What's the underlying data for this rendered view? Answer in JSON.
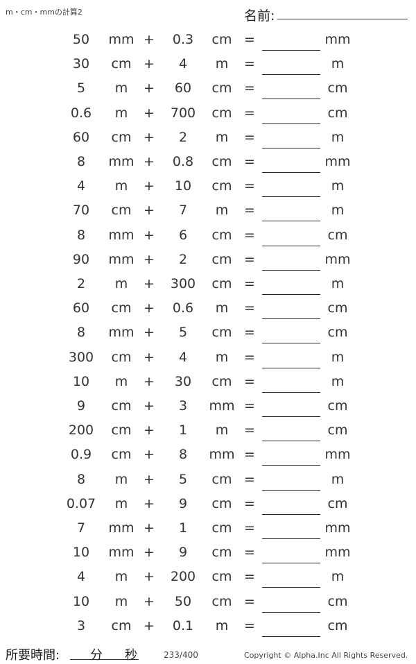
{
  "header": {
    "title": "m・cm・mmの計算2",
    "name_label": "名前:"
  },
  "problems": [
    {
      "a": "50",
      "ua": "mm",
      "op": "+",
      "b": "0.3",
      "ub": "cm",
      "eq": "=",
      "ans_unit": "mm"
    },
    {
      "a": "30",
      "ua": "cm",
      "op": "+",
      "b": "4",
      "ub": "m",
      "eq": "=",
      "ans_unit": "m"
    },
    {
      "a": "5",
      "ua": "m",
      "op": "+",
      "b": "60",
      "ub": "cm",
      "eq": "=",
      "ans_unit": "cm"
    },
    {
      "a": "0.6",
      "ua": "m",
      "op": "+",
      "b": "700",
      "ub": "cm",
      "eq": "=",
      "ans_unit": "cm"
    },
    {
      "a": "60",
      "ua": "cm",
      "op": "+",
      "b": "2",
      "ub": "m",
      "eq": "=",
      "ans_unit": "m"
    },
    {
      "a": "8",
      "ua": "mm",
      "op": "+",
      "b": "0.8",
      "ub": "cm",
      "eq": "=",
      "ans_unit": "mm"
    },
    {
      "a": "4",
      "ua": "m",
      "op": "+",
      "b": "10",
      "ub": "cm",
      "eq": "=",
      "ans_unit": "m"
    },
    {
      "a": "70",
      "ua": "cm",
      "op": "+",
      "b": "7",
      "ub": "m",
      "eq": "=",
      "ans_unit": "m"
    },
    {
      "a": "8",
      "ua": "mm",
      "op": "+",
      "b": "6",
      "ub": "cm",
      "eq": "=",
      "ans_unit": "cm"
    },
    {
      "a": "90",
      "ua": "mm",
      "op": "+",
      "b": "2",
      "ub": "cm",
      "eq": "=",
      "ans_unit": "mm"
    },
    {
      "a": "2",
      "ua": "m",
      "op": "+",
      "b": "300",
      "ub": "cm",
      "eq": "=",
      "ans_unit": "m"
    },
    {
      "a": "60",
      "ua": "cm",
      "op": "+",
      "b": "0.6",
      "ub": "m",
      "eq": "=",
      "ans_unit": "cm"
    },
    {
      "a": "8",
      "ua": "mm",
      "op": "+",
      "b": "5",
      "ub": "cm",
      "eq": "=",
      "ans_unit": "cm"
    },
    {
      "a": "300",
      "ua": "cm",
      "op": "+",
      "b": "4",
      "ub": "m",
      "eq": "=",
      "ans_unit": "m"
    },
    {
      "a": "10",
      "ua": "m",
      "op": "+",
      "b": "30",
      "ub": "cm",
      "eq": "=",
      "ans_unit": "m"
    },
    {
      "a": "9",
      "ua": "cm",
      "op": "+",
      "b": "3",
      "ub": "mm",
      "eq": "=",
      "ans_unit": "cm"
    },
    {
      "a": "200",
      "ua": "cm",
      "op": "+",
      "b": "1",
      "ub": "m",
      "eq": "=",
      "ans_unit": "cm"
    },
    {
      "a": "0.9",
      "ua": "cm",
      "op": "+",
      "b": "8",
      "ub": "mm",
      "eq": "=",
      "ans_unit": "mm"
    },
    {
      "a": "8",
      "ua": "m",
      "op": "+",
      "b": "5",
      "ub": "cm",
      "eq": "=",
      "ans_unit": "m"
    },
    {
      "a": "0.07",
      "ua": "m",
      "op": "+",
      "b": "9",
      "ub": "cm",
      "eq": "=",
      "ans_unit": "cm"
    },
    {
      "a": "7",
      "ua": "mm",
      "op": "+",
      "b": "1",
      "ub": "cm",
      "eq": "=",
      "ans_unit": "mm"
    },
    {
      "a": "10",
      "ua": "mm",
      "op": "+",
      "b": "9",
      "ub": "cm",
      "eq": "=",
      "ans_unit": "mm"
    },
    {
      "a": "4",
      "ua": "m",
      "op": "+",
      "b": "200",
      "ub": "cm",
      "eq": "=",
      "ans_unit": "m"
    },
    {
      "a": "10",
      "ua": "m",
      "op": "+",
      "b": "50",
      "ub": "cm",
      "eq": "=",
      "ans_unit": "cm"
    },
    {
      "a": "3",
      "ua": "cm",
      "op": "+",
      "b": "0.1",
      "ub": "m",
      "eq": "=",
      "ans_unit": "cm"
    }
  ],
  "footer": {
    "time_label": "所要時間:",
    "minutes": "分",
    "seconds": "秒",
    "page": "233/400",
    "copyright": "Copyright © Alpha.Inc All Rights Reserved."
  }
}
